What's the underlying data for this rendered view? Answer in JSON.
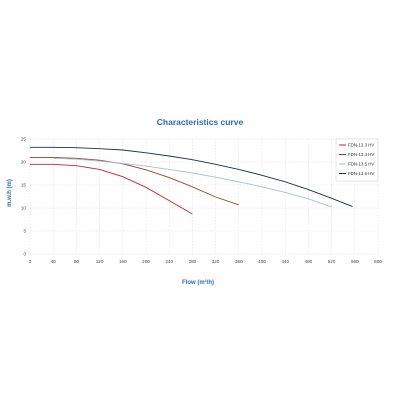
{
  "chart_data": {
    "type": "line",
    "title": "Characteristics curve",
    "xlabel": "Flow (m³/h)",
    "ylabel": "m.w.h (m)",
    "xlim": [
      0,
      600
    ],
    "ylim": [
      0,
      25
    ],
    "x_ticks": [
      0,
      40,
      80,
      120,
      160,
      200,
      240,
      280,
      320,
      360,
      400,
      440,
      480,
      520,
      560,
      600
    ],
    "y_ticks": [
      0,
      5,
      10,
      15,
      20,
      25
    ],
    "grid": true,
    "legend_position": "top-right",
    "series": [
      {
        "name": "FDN-13.3 HV",
        "color": "#c0272d",
        "points": [
          [
            0,
            19.5
          ],
          [
            40,
            19.5
          ],
          [
            80,
            19.2
          ],
          [
            120,
            18.4
          ],
          [
            160,
            16.8
          ],
          [
            200,
            14.5
          ],
          [
            240,
            11.6
          ],
          [
            280,
            8.7
          ]
        ]
      },
      {
        "name": "FDN-13.4 HV",
        "color": "#8b4a2b",
        "points": [
          [
            0,
            21.0
          ],
          [
            40,
            21.0
          ],
          [
            80,
            20.8
          ],
          [
            120,
            20.4
          ],
          [
            160,
            19.6
          ],
          [
            200,
            18.3
          ],
          [
            240,
            16.6
          ],
          [
            280,
            14.6
          ],
          [
            320,
            12.4
          ],
          [
            360,
            10.7
          ]
        ]
      },
      {
        "name": "FDN-13.5 HV",
        "color": "#a8bfd6",
        "points": [
          [
            40,
            20.8
          ],
          [
            80,
            20.6
          ],
          [
            120,
            20.2
          ],
          [
            160,
            19.7
          ],
          [
            200,
            19.1
          ],
          [
            240,
            18.4
          ],
          [
            280,
            17.6
          ],
          [
            320,
            16.7
          ],
          [
            360,
            15.7
          ],
          [
            400,
            14.6
          ],
          [
            440,
            13.4
          ],
          [
            480,
            12.0
          ],
          [
            520,
            10.2
          ]
        ]
      },
      {
        "name": "FDN-13.6 HV",
        "color": "#1f2f44",
        "points": [
          [
            0,
            23.2
          ],
          [
            40,
            23.2
          ],
          [
            80,
            23.1
          ],
          [
            120,
            22.9
          ],
          [
            160,
            22.6
          ],
          [
            200,
            22.0
          ],
          [
            240,
            21.3
          ],
          [
            280,
            20.5
          ],
          [
            320,
            19.5
          ],
          [
            360,
            18.4
          ],
          [
            400,
            17.1
          ],
          [
            440,
            15.7
          ],
          [
            480,
            14.0
          ],
          [
            520,
            12.1
          ],
          [
            556,
            10.3
          ]
        ]
      }
    ]
  }
}
